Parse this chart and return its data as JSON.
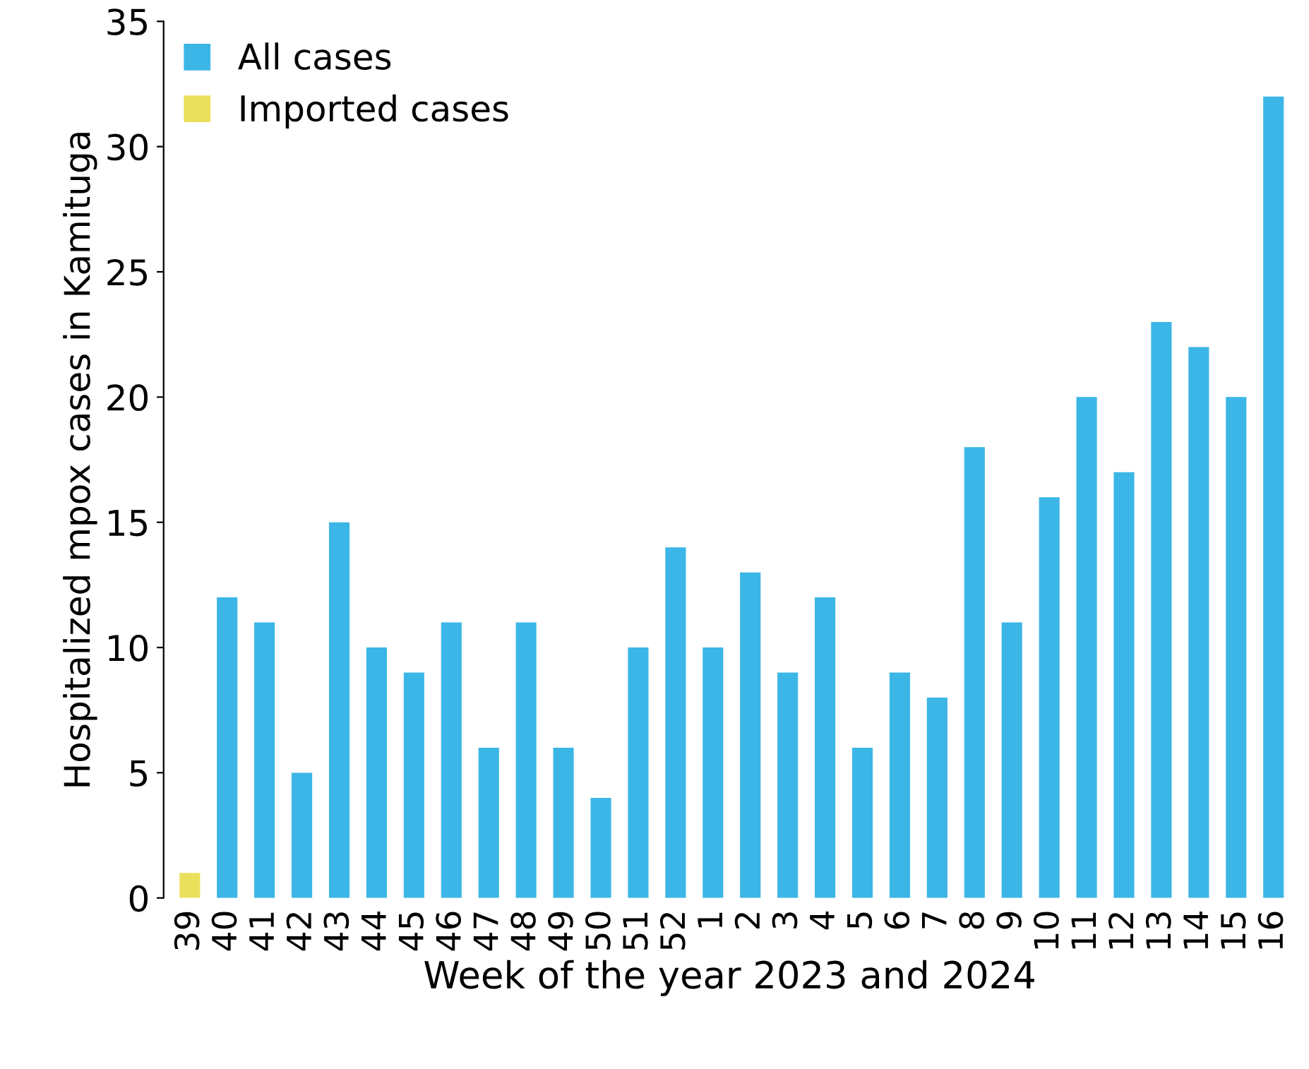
{
  "chart_data": {
    "type": "bar",
    "xlabel": "Week of the year 2023 and 2024",
    "ylabel": "Hospitalized mpox cases in Kamituga",
    "categories": [
      "39",
      "40",
      "41",
      "42",
      "43",
      "44",
      "45",
      "46",
      "47",
      "48",
      "49",
      "50",
      "51",
      "52",
      "1",
      "2",
      "3",
      "4",
      "5",
      "6",
      "7",
      "8",
      "9",
      "10",
      "11",
      "12",
      "13",
      "14",
      "15",
      "16"
    ],
    "series": [
      {
        "name": "All cases",
        "color": "#3bb6e6",
        "values": [
          null,
          12,
          11,
          5,
          15,
          10,
          9,
          11,
          6,
          11,
          6,
          4,
          10,
          14,
          10,
          13,
          9,
          12,
          6,
          9,
          8,
          18,
          11,
          16,
          20,
          17,
          23,
          22,
          20,
          32
        ]
      },
      {
        "name": "Imported cases",
        "color": "#ebe05c",
        "values": [
          1,
          null,
          null,
          null,
          null,
          null,
          null,
          null,
          null,
          null,
          null,
          null,
          null,
          null,
          null,
          null,
          null,
          null,
          null,
          null,
          null,
          null,
          null,
          null,
          null,
          null,
          null,
          null,
          null,
          null
        ]
      }
    ],
    "ylim": [
      0,
      35
    ],
    "yticks": [
      0,
      5,
      10,
      15,
      20,
      25,
      30,
      35
    ],
    "grid": false,
    "legend": "top left"
  }
}
